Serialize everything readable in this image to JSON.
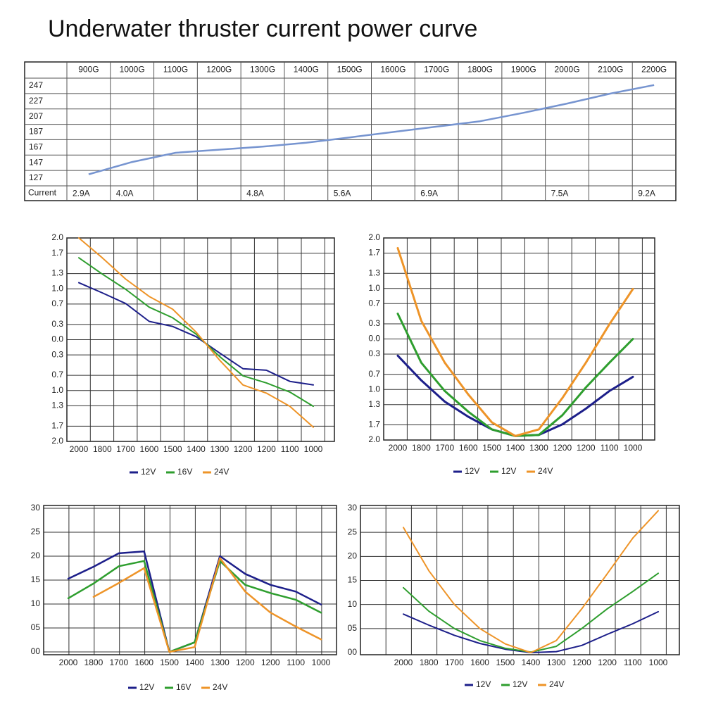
{
  "title": "Underwater thruster current power curve",
  "chart_data": [
    {
      "type": "table-line",
      "categories": [
        "900G",
        "1000G",
        "1100G",
        "1200G",
        "1300G",
        "1400G",
        "1500G",
        "1600G",
        "1700G",
        "1800G",
        "1900G",
        "2000G",
        "2100G",
        "2200G"
      ],
      "values": [
        132,
        148,
        160,
        164,
        168,
        173,
        180,
        187,
        194,
        201,
        212,
        224,
        237,
        248
      ],
      "color": "#7694d0",
      "ylim": [
        117,
        257
      ],
      "yticks": [
        247,
        227,
        207,
        187,
        167,
        147,
        127
      ],
      "row_label": "Current",
      "current": [
        "2.9A",
        "4.0A",
        null,
        null,
        "4.8A",
        null,
        "5.6A",
        null,
        "6.9A",
        null,
        null,
        "7.5A",
        null,
        "9.2A"
      ]
    },
    {
      "type": "line",
      "categories": [
        "2000",
        "1800",
        "1700",
        "1600",
        "1500",
        "1400",
        "1300",
        "1200",
        "1200",
        "1100",
        "1000"
      ],
      "ylim": [
        -2,
        2
      ],
      "yticks": [
        {
          "value": 2,
          "label": "2.0"
        },
        {
          "value": 1.7,
          "label": "1.7"
        },
        {
          "value": 1.3,
          "label": "1.3"
        },
        {
          "value": 1,
          "label": "1.0"
        },
        {
          "value": 0.7,
          "label": "0.7"
        },
        {
          "value": 0.3,
          "label": "0.3"
        },
        {
          "value": 0,
          "label": "0.0"
        },
        {
          "value": -0.3,
          "label": "0.3"
        },
        {
          "value": -0.7,
          "label": "0.7"
        },
        {
          "value": -1,
          "label": "1.0"
        },
        {
          "value": -1.3,
          "label": "1.3"
        },
        {
          "value": -1.7,
          "label": "1.7"
        },
        {
          "value": -2,
          "label": "2.0"
        }
      ],
      "series": [
        {
          "name": "12V",
          "color": "#1d1f8a",
          "values": [
            1.12,
            0.92,
            0.71,
            0.36,
            0.26,
            0.06,
            -0.26,
            -0.57,
            -0.6,
            -0.82,
            -0.89
          ]
        },
        {
          "name": "16V",
          "color": "#2e9e2e",
          "values": [
            1.61,
            1.29,
            0.99,
            0.64,
            0.43,
            0.11,
            -0.33,
            -0.71,
            -0.85,
            -1.03,
            -1.31
          ]
        },
        {
          "name": "24V",
          "color": "#ee9428",
          "values": [
            2.0,
            1.61,
            1.19,
            0.85,
            0.6,
            0.15,
            -0.4,
            -0.89,
            -1.05,
            -1.31,
            -1.72
          ]
        }
      ]
    },
    {
      "type": "line",
      "categories": [
        "2000",
        "1800",
        "1700",
        "1600",
        "1500",
        "1400",
        "1300",
        "1200",
        "1200",
        "1100",
        "1000"
      ],
      "ylim": [
        -2,
        2
      ],
      "yticks": [
        {
          "value": 2,
          "label": "2.0"
        },
        {
          "value": 1.7,
          "label": "1.7"
        },
        {
          "value": 1.3,
          "label": "1.3"
        },
        {
          "value": 1,
          "label": "1.0"
        },
        {
          "value": 0.7,
          "label": "0.7"
        },
        {
          "value": 0.3,
          "label": "0.3"
        },
        {
          "value": 0,
          "label": "0.0"
        },
        {
          "value": -0.3,
          "label": "0.3"
        },
        {
          "value": -0.7,
          "label": "0.7"
        },
        {
          "value": -1,
          "label": "1.0"
        },
        {
          "value": -1.3,
          "label": "1.3"
        },
        {
          "value": -1.7,
          "label": "1.7"
        },
        {
          "value": -2,
          "label": "2.0"
        }
      ],
      "series": [
        {
          "name": "12V",
          "color": "#1d1f8a",
          "values": [
            -0.33,
            -0.82,
            -1.24,
            -1.54,
            -1.79,
            -1.92,
            -1.9,
            -1.69,
            -1.38,
            -1.03,
            -0.75
          ]
        },
        {
          "name": "12V",
          "color": "#2e9e2e",
          "values": [
            0.5,
            -0.47,
            -1.03,
            -1.44,
            -1.79,
            -1.92,
            -1.9,
            -1.51,
            -0.96,
            -0.47,
            0
          ]
        },
        {
          "name": "24V",
          "color": "#ee9428",
          "values": [
            1.8,
            0.36,
            -0.47,
            -1.1,
            -1.65,
            -1.92,
            -1.79,
            -1.17,
            -0.47,
            0.29,
            0.99
          ]
        }
      ]
    },
    {
      "type": "line",
      "categories": [
        "2000",
        "1800",
        "1700",
        "1600",
        "1500",
        "1400",
        "1300",
        "1200",
        "1200",
        "1100",
        "1000"
      ],
      "ylim": [
        0,
        30
      ],
      "yticks": [
        30,
        25,
        20,
        15,
        10,
        {
          "value": 5,
          "label": "05"
        },
        {
          "value": 0,
          "label": "00"
        }
      ],
      "series": [
        {
          "name": "12V",
          "color": "#1d1f8a",
          "values": [
            15.3,
            17.8,
            20.6,
            21,
            0,
            2,
            20,
            16.3,
            14,
            12.6,
            9.9
          ]
        },
        {
          "name": "16V",
          "color": "#2e9e2e",
          "values": [
            11.2,
            14.3,
            17.9,
            19,
            0,
            2,
            19,
            14,
            12.3,
            10.9,
            8.2
          ]
        },
        {
          "name": "24V",
          "color": "#ee9428",
          "values": [
            null,
            11.5,
            14.4,
            17.5,
            0,
            1,
            19.6,
            12.6,
            8.2,
            5.3,
            2.6
          ]
        }
      ]
    },
    {
      "type": "line",
      "categories": [
        "2000",
        "1800",
        "1700",
        "1600",
        "1500",
        "1400",
        "1300",
        "1200",
        "1200",
        "1100",
        "1000"
      ],
      "ylim": [
        0,
        30
      ],
      "yticks": [
        30,
        25,
        20,
        15,
        10,
        {
          "value": 5,
          "label": "05"
        },
        {
          "value": 0,
          "label": "00"
        }
      ],
      "series": [
        {
          "name": "12V",
          "color": "#1d1f8a",
          "values": [
            8,
            5.7,
            3.6,
            1.9,
            0.7,
            0,
            0.2,
            1.5,
            3.8,
            6,
            8.5
          ]
        },
        {
          "name": "12V",
          "color": "#2e9e2e",
          "values": [
            13.5,
            8.6,
            5,
            2.5,
            0.9,
            0.1,
            1.3,
            5,
            9.1,
            12.7,
            16.5
          ]
        },
        {
          "name": "24V",
          "color": "#ee9428",
          "values": [
            26,
            17,
            10,
            5,
            1.8,
            0,
            2.5,
            9.1,
            16.4,
            23.8,
            29.5
          ]
        }
      ]
    }
  ]
}
